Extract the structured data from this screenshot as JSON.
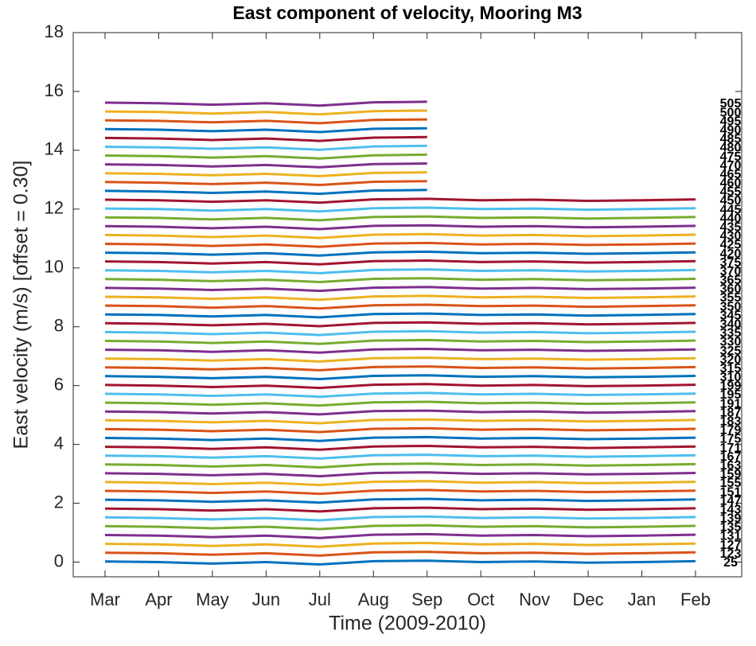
{
  "chart_data": {
    "type": "line",
    "title": "East component of velocity, Mooring M3",
    "xlabel": "Time (2009-2010)",
    "ylabel": "East velocity (m/s) [offset = 0.30]",
    "categories": [
      "Mar",
      "Apr",
      "May",
      "Jun",
      "Jul",
      "Aug",
      "Sep",
      "Oct",
      "Nov",
      "Dec",
      "Jan",
      "Feb"
    ],
    "ylim": [
      -0.5,
      18
    ],
    "yticks": [
      0,
      2,
      4,
      6,
      8,
      10,
      12,
      14,
      16,
      18
    ],
    "colors": [
      "#0072BD",
      "#D95319",
      "#EDB120",
      "#7E2F8E",
      "#77AC30",
      "#4DBEEE",
      "#A2142F"
    ],
    "series": [
      {
        "name": "25",
        "values": [
          0.02,
          0,
          -0.05,
          0,
          -0.08,
          0.03,
          0.05,
          0,
          0.02,
          -0.02,
          0,
          0.03
        ]
      },
      {
        "name": "123",
        "values": [
          0.32,
          0.3,
          0.25,
          0.3,
          0.22,
          0.33,
          0.35,
          0.3,
          0.32,
          0.28,
          0.3,
          0.33
        ]
      },
      {
        "name": "127",
        "values": [
          0.62,
          0.6,
          0.55,
          0.6,
          0.52,
          0.63,
          0.65,
          0.6,
          0.62,
          0.58,
          0.6,
          0.63
        ]
      },
      {
        "name": "131",
        "values": [
          0.92,
          0.9,
          0.85,
          0.9,
          0.82,
          0.93,
          0.95,
          0.9,
          0.92,
          0.88,
          0.9,
          0.93
        ]
      },
      {
        "name": "135",
        "values": [
          1.22,
          1.2,
          1.15,
          1.2,
          1.12,
          1.23,
          1.25,
          1.2,
          1.22,
          1.18,
          1.2,
          1.23
        ]
      },
      {
        "name": "139",
        "values": [
          1.52,
          1.5,
          1.45,
          1.5,
          1.42,
          1.53,
          1.55,
          1.5,
          1.52,
          1.48,
          1.5,
          1.53
        ]
      },
      {
        "name": "143",
        "values": [
          1.82,
          1.8,
          1.75,
          1.8,
          1.72,
          1.83,
          1.85,
          1.8,
          1.82,
          1.78,
          1.8,
          1.83
        ]
      },
      {
        "name": "147",
        "values": [
          2.12,
          2.1,
          2.05,
          2.1,
          2.02,
          2.13,
          2.15,
          2.1,
          2.12,
          2.08,
          2.1,
          2.13
        ]
      },
      {
        "name": "151",
        "values": [
          2.42,
          2.4,
          2.35,
          2.4,
          2.32,
          2.43,
          2.45,
          2.4,
          2.42,
          2.38,
          2.4,
          2.43
        ]
      },
      {
        "name": "155",
        "values": [
          2.72,
          2.7,
          2.65,
          2.7,
          2.62,
          2.73,
          2.75,
          2.7,
          2.72,
          2.68,
          2.7,
          2.73
        ]
      },
      {
        "name": "159",
        "values": [
          3.02,
          3,
          2.95,
          3,
          2.92,
          3.03,
          3.05,
          3,
          3.02,
          2.98,
          3,
          3.03
        ]
      },
      {
        "name": "163",
        "values": [
          3.32,
          3.3,
          3.25,
          3.3,
          3.22,
          3.33,
          3.35,
          3.3,
          3.32,
          3.28,
          3.3,
          3.33
        ]
      },
      {
        "name": "167",
        "values": [
          3.62,
          3.6,
          3.55,
          3.6,
          3.52,
          3.63,
          3.65,
          3.6,
          3.62,
          3.58,
          3.6,
          3.63
        ]
      },
      {
        "name": "171",
        "values": [
          3.92,
          3.9,
          3.85,
          3.9,
          3.82,
          3.93,
          3.95,
          3.9,
          3.92,
          3.88,
          3.9,
          3.93
        ]
      },
      {
        "name": "175",
        "values": [
          4.22,
          4.2,
          4.15,
          4.2,
          4.12,
          4.23,
          4.25,
          4.2,
          4.22,
          4.18,
          4.2,
          4.23
        ]
      },
      {
        "name": "179",
        "values": [
          4.52,
          4.5,
          4.45,
          4.5,
          4.42,
          4.53,
          4.55,
          4.5,
          4.52,
          4.48,
          4.5,
          4.53
        ]
      },
      {
        "name": "183",
        "values": [
          4.82,
          4.8,
          4.75,
          4.8,
          4.72,
          4.83,
          4.85,
          4.8,
          4.82,
          4.78,
          4.8,
          4.83
        ]
      },
      {
        "name": "187",
        "values": [
          5.12,
          5.1,
          5.05,
          5.1,
          5.02,
          5.13,
          5.15,
          5.1,
          5.12,
          5.08,
          5.1,
          5.13
        ]
      },
      {
        "name": "191",
        "values": [
          5.42,
          5.4,
          5.35,
          5.4,
          5.32,
          5.43,
          5.45,
          5.4,
          5.42,
          5.38,
          5.4,
          5.43
        ]
      },
      {
        "name": "195",
        "values": [
          5.72,
          5.7,
          5.65,
          5.7,
          5.62,
          5.73,
          5.75,
          5.7,
          5.72,
          5.68,
          5.7,
          5.73
        ]
      },
      {
        "name": "199",
        "values": [
          6.02,
          6,
          5.95,
          6,
          5.92,
          6.03,
          6.05,
          6,
          6.02,
          5.98,
          6,
          6.03
        ]
      },
      {
        "name": "310",
        "values": [
          6.32,
          6.3,
          6.25,
          6.3,
          6.22,
          6.33,
          6.35,
          6.3,
          6.32,
          6.28,
          6.3,
          6.33
        ]
      },
      {
        "name": "315",
        "values": [
          6.62,
          6.6,
          6.55,
          6.6,
          6.52,
          6.63,
          6.65,
          6.6,
          6.62,
          6.58,
          6.6,
          6.63
        ]
      },
      {
        "name": "320",
        "values": [
          6.92,
          6.9,
          6.85,
          6.9,
          6.82,
          6.93,
          6.95,
          6.9,
          6.92,
          6.88,
          6.9,
          6.93
        ]
      },
      {
        "name": "325",
        "values": [
          7.22,
          7.2,
          7.15,
          7.2,
          7.12,
          7.23,
          7.25,
          7.2,
          7.22,
          7.18,
          7.2,
          7.23
        ]
      },
      {
        "name": "330",
        "values": [
          7.52,
          7.5,
          7.45,
          7.5,
          7.42,
          7.53,
          7.55,
          7.5,
          7.52,
          7.48,
          7.5,
          7.53
        ]
      },
      {
        "name": "335",
        "values": [
          7.82,
          7.8,
          7.75,
          7.8,
          7.72,
          7.83,
          7.85,
          7.8,
          7.82,
          7.78,
          7.8,
          7.83
        ]
      },
      {
        "name": "340",
        "values": [
          8.12,
          8.1,
          8.05,
          8.1,
          8.02,
          8.13,
          8.15,
          8.1,
          8.12,
          8.08,
          8.1,
          8.13
        ]
      },
      {
        "name": "345",
        "values": [
          8.42,
          8.4,
          8.35,
          8.4,
          8.32,
          8.43,
          8.45,
          8.4,
          8.42,
          8.38,
          8.4,
          8.43
        ]
      },
      {
        "name": "350",
        "values": [
          8.72,
          8.7,
          8.65,
          8.7,
          8.62,
          8.73,
          8.75,
          8.7,
          8.72,
          8.68,
          8.7,
          8.73
        ]
      },
      {
        "name": "355",
        "values": [
          9.02,
          9,
          8.95,
          9,
          8.92,
          9.03,
          9.05,
          9,
          9.02,
          8.98,
          9,
          9.03
        ]
      },
      {
        "name": "360",
        "values": [
          9.32,
          9.3,
          9.25,
          9.3,
          9.22,
          9.33,
          9.35,
          9.3,
          9.32,
          9.28,
          9.3,
          9.33
        ]
      },
      {
        "name": "365",
        "values": [
          9.62,
          9.6,
          9.55,
          9.6,
          9.52,
          9.63,
          9.65,
          9.6,
          9.62,
          9.58,
          9.6,
          9.63
        ]
      },
      {
        "name": "370",
        "values": [
          9.92,
          9.9,
          9.85,
          9.9,
          9.82,
          9.93,
          9.95,
          9.9,
          9.92,
          9.88,
          9.9,
          9.93
        ]
      },
      {
        "name": "375",
        "values": [
          10.22,
          10.2,
          10.15,
          10.2,
          10.12,
          10.23,
          10.25,
          10.2,
          10.22,
          10.18,
          10.2,
          10.23
        ]
      },
      {
        "name": "420",
        "values": [
          10.52,
          10.5,
          10.45,
          10.5,
          10.42,
          10.53,
          10.55,
          10.5,
          10.52,
          10.48,
          10.5,
          10.53
        ]
      },
      {
        "name": "425",
        "values": [
          10.82,
          10.8,
          10.75,
          10.8,
          10.72,
          10.83,
          10.85,
          10.8,
          10.82,
          10.78,
          10.8,
          10.83
        ]
      },
      {
        "name": "430",
        "values": [
          11.12,
          11.1,
          11.05,
          11.1,
          11.02,
          11.13,
          11.15,
          11.1,
          11.12,
          11.08,
          11.1,
          11.13
        ]
      },
      {
        "name": "435",
        "values": [
          11.42,
          11.4,
          11.35,
          11.4,
          11.32,
          11.43,
          11.45,
          11.4,
          11.42,
          11.38,
          11.4,
          11.43
        ]
      },
      {
        "name": "440",
        "values": [
          11.72,
          11.7,
          11.65,
          11.7,
          11.62,
          11.73,
          11.75,
          11.7,
          11.72,
          11.68,
          11.7,
          11.73
        ]
      },
      {
        "name": "445",
        "values": [
          12.02,
          12,
          11.95,
          12,
          11.92,
          12.03,
          12.05,
          12,
          12.02,
          11.98,
          12,
          12.03
        ]
      },
      {
        "name": "450",
        "values": [
          12.32,
          12.3,
          12.25,
          12.3,
          12.22,
          12.33,
          12.35,
          12.3,
          12.32,
          12.28,
          12.3,
          12.33
        ]
      },
      {
        "name": "455",
        "values": [
          12.62,
          12.6,
          12.55,
          12.6,
          12.52,
          12.63,
          12.65,
          null,
          null,
          null,
          null,
          null
        ]
      },
      {
        "name": "460",
        "values": [
          12.92,
          12.9,
          12.85,
          12.9,
          12.82,
          12.93,
          12.95,
          null,
          null,
          null,
          null,
          null
        ]
      },
      {
        "name": "465",
        "values": [
          13.22,
          13.2,
          13.15,
          13.2,
          13.12,
          13.23,
          13.25,
          null,
          null,
          null,
          null,
          null
        ]
      },
      {
        "name": "470",
        "values": [
          13.52,
          13.5,
          13.45,
          13.5,
          13.42,
          13.53,
          13.55,
          null,
          null,
          null,
          null,
          null
        ]
      },
      {
        "name": "475",
        "values": [
          13.82,
          13.8,
          13.75,
          13.8,
          13.72,
          13.83,
          13.85,
          null,
          null,
          null,
          null,
          null
        ]
      },
      {
        "name": "480",
        "values": [
          14.12,
          14.1,
          14.05,
          14.1,
          14.02,
          14.13,
          14.15,
          null,
          null,
          null,
          null,
          null
        ]
      },
      {
        "name": "485",
        "values": [
          14.42,
          14.4,
          14.35,
          14.4,
          14.32,
          14.43,
          14.45,
          null,
          null,
          null,
          null,
          null
        ]
      },
      {
        "name": "490",
        "values": [
          14.72,
          14.7,
          14.65,
          14.7,
          14.62,
          14.73,
          14.75,
          null,
          null,
          null,
          null,
          null
        ]
      },
      {
        "name": "495",
        "values": [
          15.02,
          15,
          14.95,
          15,
          14.92,
          15.03,
          15.05,
          null,
          null,
          null,
          null,
          null
        ]
      },
      {
        "name": "500",
        "values": [
          15.32,
          15.3,
          15.25,
          15.3,
          15.22,
          15.33,
          15.35,
          null,
          null,
          null,
          null,
          null
        ]
      },
      {
        "name": "505",
        "values": [
          15.62,
          15.6,
          15.55,
          15.6,
          15.52,
          15.63,
          15.65,
          null,
          null,
          null,
          null,
          null
        ]
      }
    ]
  }
}
